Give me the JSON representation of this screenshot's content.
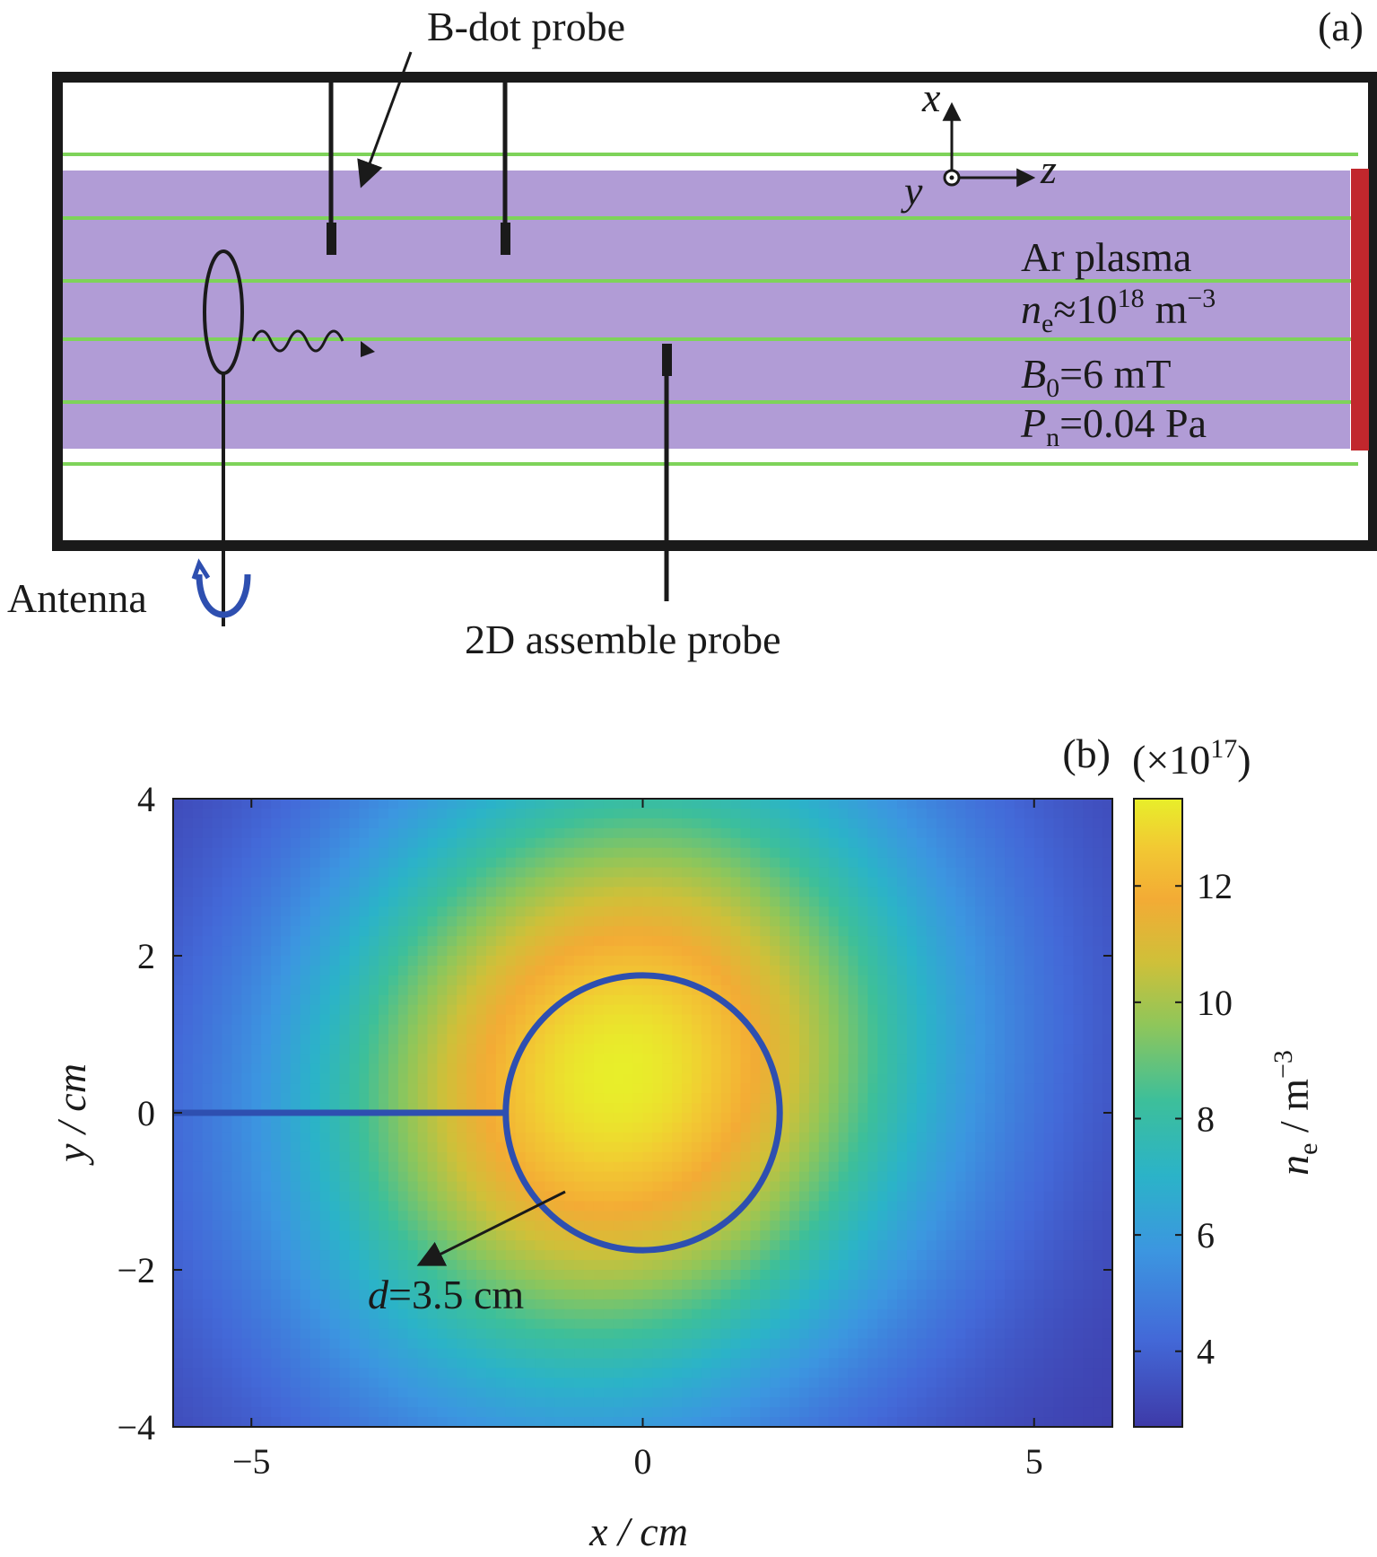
{
  "figure": {
    "panel_a": {
      "panel_label": "(a)",
      "labels": {
        "bdot_probe": "B-dot probe",
        "antenna": "Antenna",
        "assemble_probe": "2D assemble probe",
        "axis_x": "x",
        "axis_y": "y",
        "axis_z": "z"
      },
      "plasma_params": {
        "gas": "Ar plasma",
        "ne_symbol": "n",
        "ne_sub": "e",
        "ne_rel": "≈",
        "ne_base": "10",
        "ne_exp": "18",
        "ne_unit": "m",
        "ne_unit_exp": "−3",
        "b_symbol": "B",
        "b_sub": "0",
        "b_value": "=6 mT",
        "p_symbol": "P",
        "p_sub": "n",
        "p_value": "=0.04 Pa"
      },
      "colors": {
        "plasma": "#b19cd6",
        "field_lines": "#7ed35a",
        "endplate": "#c1272d",
        "chamber": "#1a1a1a"
      }
    },
    "panel_b": {
      "panel_label": "(b)",
      "colorbar_multiplier": "(×10",
      "colorbar_multiplier_exp": "17",
      "colorbar_multiplier_close": ")",
      "colorbar_label_symbol": "n",
      "colorbar_label_sub": "e",
      "colorbar_label_unit": " / m",
      "colorbar_label_exp": "−3",
      "annotation": "d=3.5 cm",
      "annotation_symbol": "d",
      "annotation_value": "=3.5 cm",
      "colors": {
        "antenna_outline": "#2e4fb0"
      }
    }
  },
  "chart_data": {
    "type": "heatmap",
    "title": "",
    "xlabel": "x / cm",
    "ylabel": "y / cm",
    "xlim": [
      -6,
      6
    ],
    "ylim": [
      -4,
      4
    ],
    "x_ticks": [
      -5,
      0,
      5
    ],
    "x_tick_labels": [
      "−5",
      "0",
      "5"
    ],
    "y_ticks": [
      4,
      2,
      0,
      -2,
      -4
    ],
    "y_tick_labels": [
      "4",
      "2",
      "0",
      "−2",
      "−4"
    ],
    "colorbar": {
      "range": [
        2.7,
        13.5
      ],
      "ticks": [
        4,
        6,
        8,
        10,
        12
      ],
      "tick_labels": [
        "4",
        "6",
        "8",
        "10",
        "12"
      ],
      "colormap": "parula"
    },
    "peak": {
      "x": -0.3,
      "y": 0.5,
      "value": 13.5
    },
    "antenna_loop": {
      "center": [
        0,
        0
      ],
      "diameter": 3.5
    }
  }
}
